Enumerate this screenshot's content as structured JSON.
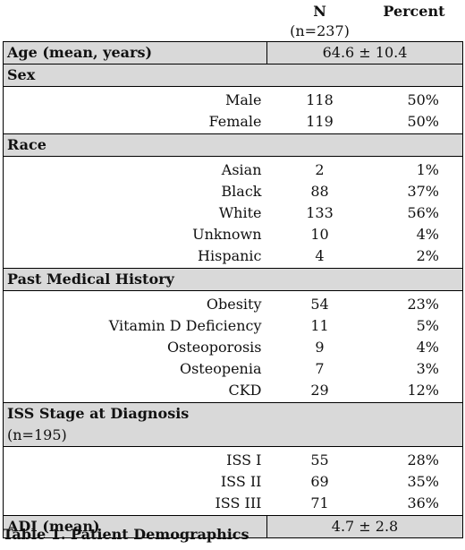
{
  "header": {
    "n_label": "N",
    "n_sub": "(n=237)",
    "percent_label": "Percent"
  },
  "age": {
    "label": "Age (mean, years)",
    "value": "64.6 ± 10.4"
  },
  "sex": {
    "label": "Sex",
    "rows": [
      {
        "label": "Male",
        "n": "118",
        "pct": "50%"
      },
      {
        "label": "Female",
        "n": "119",
        "pct": "50%"
      }
    ]
  },
  "race": {
    "label": "Race",
    "rows": [
      {
        "label": "Asian",
        "n": "2",
        "pct": "1%"
      },
      {
        "label": "Black",
        "n": "88",
        "pct": "37%"
      },
      {
        "label": "White",
        "n": "133",
        "pct": "56%"
      },
      {
        "label": "Unknown",
        "n": "10",
        "pct": "4%"
      },
      {
        "label": "Hispanic",
        "n": "4",
        "pct": "2%"
      }
    ]
  },
  "pmh": {
    "label": "Past Medical History",
    "rows": [
      {
        "label": "Obesity",
        "n": "54",
        "pct": "23%"
      },
      {
        "label": "Vitamin D Deficiency",
        "n": "11",
        "pct": "5%"
      },
      {
        "label": "Osteoporosis",
        "n": "9",
        "pct": "4%"
      },
      {
        "label": "Osteopenia",
        "n": "7",
        "pct": "3%"
      },
      {
        "label": "CKD",
        "n": "29",
        "pct": "12%"
      }
    ]
  },
  "iss": {
    "label": "ISS Stage at Diagnosis",
    "sub": "(n=195)",
    "rows": [
      {
        "label": "ISS I",
        "n": "55",
        "pct": "28%"
      },
      {
        "label": "ISS II",
        "n": "69",
        "pct": "35%"
      },
      {
        "label": "ISS III",
        "n": "71",
        "pct": "36%"
      }
    ]
  },
  "adi": {
    "label": "ADI (mean)",
    "value": "4.7 ± 2.8"
  },
  "caption": "Table 1. Patient Demographics"
}
